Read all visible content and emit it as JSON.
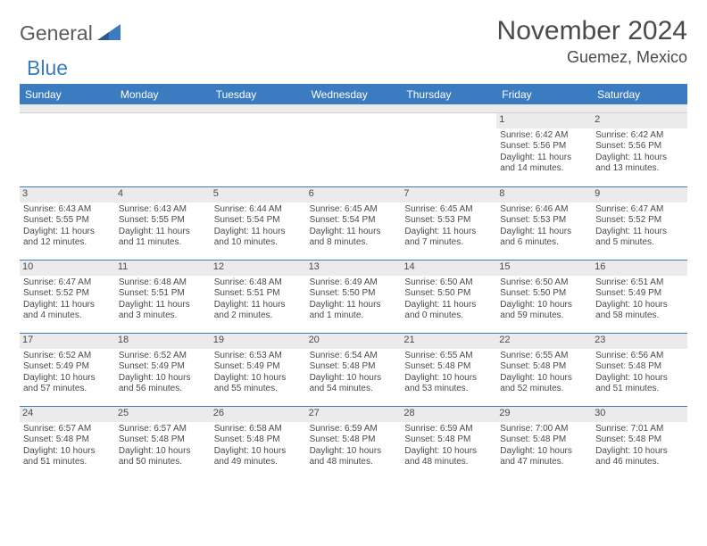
{
  "logo": {
    "part1": "General",
    "part2": "Blue"
  },
  "title": "November 2024",
  "location": "Guemez, Mexico",
  "colors": {
    "accent": "#3b7bbf",
    "header_bg": "#3b7bbf",
    "daynum_bg": "#ebebeb",
    "text": "#4a4a4a",
    "logo_gray": "#5a5a5a"
  },
  "weekdays": [
    "Sunday",
    "Monday",
    "Tuesday",
    "Wednesday",
    "Thursday",
    "Friday",
    "Saturday"
  ],
  "weeks": [
    [
      {
        "empty": true
      },
      {
        "empty": true
      },
      {
        "empty": true
      },
      {
        "empty": true
      },
      {
        "empty": true
      },
      {
        "day": "1",
        "sunrise": "Sunrise: 6:42 AM",
        "sunset": "Sunset: 5:56 PM",
        "daylight1": "Daylight: 11 hours",
        "daylight2": "and 14 minutes."
      },
      {
        "day": "2",
        "sunrise": "Sunrise: 6:42 AM",
        "sunset": "Sunset: 5:56 PM",
        "daylight1": "Daylight: 11 hours",
        "daylight2": "and 13 minutes."
      }
    ],
    [
      {
        "day": "3",
        "sunrise": "Sunrise: 6:43 AM",
        "sunset": "Sunset: 5:55 PM",
        "daylight1": "Daylight: 11 hours",
        "daylight2": "and 12 minutes."
      },
      {
        "day": "4",
        "sunrise": "Sunrise: 6:43 AM",
        "sunset": "Sunset: 5:55 PM",
        "daylight1": "Daylight: 11 hours",
        "daylight2": "and 11 minutes."
      },
      {
        "day": "5",
        "sunrise": "Sunrise: 6:44 AM",
        "sunset": "Sunset: 5:54 PM",
        "daylight1": "Daylight: 11 hours",
        "daylight2": "and 10 minutes."
      },
      {
        "day": "6",
        "sunrise": "Sunrise: 6:45 AM",
        "sunset": "Sunset: 5:54 PM",
        "daylight1": "Daylight: 11 hours",
        "daylight2": "and 8 minutes."
      },
      {
        "day": "7",
        "sunrise": "Sunrise: 6:45 AM",
        "sunset": "Sunset: 5:53 PM",
        "daylight1": "Daylight: 11 hours",
        "daylight2": "and 7 minutes."
      },
      {
        "day": "8",
        "sunrise": "Sunrise: 6:46 AM",
        "sunset": "Sunset: 5:53 PM",
        "daylight1": "Daylight: 11 hours",
        "daylight2": "and 6 minutes."
      },
      {
        "day": "9",
        "sunrise": "Sunrise: 6:47 AM",
        "sunset": "Sunset: 5:52 PM",
        "daylight1": "Daylight: 11 hours",
        "daylight2": "and 5 minutes."
      }
    ],
    [
      {
        "day": "10",
        "sunrise": "Sunrise: 6:47 AM",
        "sunset": "Sunset: 5:52 PM",
        "daylight1": "Daylight: 11 hours",
        "daylight2": "and 4 minutes."
      },
      {
        "day": "11",
        "sunrise": "Sunrise: 6:48 AM",
        "sunset": "Sunset: 5:51 PM",
        "daylight1": "Daylight: 11 hours",
        "daylight2": "and 3 minutes."
      },
      {
        "day": "12",
        "sunrise": "Sunrise: 6:48 AM",
        "sunset": "Sunset: 5:51 PM",
        "daylight1": "Daylight: 11 hours",
        "daylight2": "and 2 minutes."
      },
      {
        "day": "13",
        "sunrise": "Sunrise: 6:49 AM",
        "sunset": "Sunset: 5:50 PM",
        "daylight1": "Daylight: 11 hours",
        "daylight2": "and 1 minute."
      },
      {
        "day": "14",
        "sunrise": "Sunrise: 6:50 AM",
        "sunset": "Sunset: 5:50 PM",
        "daylight1": "Daylight: 11 hours",
        "daylight2": "and 0 minutes."
      },
      {
        "day": "15",
        "sunrise": "Sunrise: 6:50 AM",
        "sunset": "Sunset: 5:50 PM",
        "daylight1": "Daylight: 10 hours",
        "daylight2": "and 59 minutes."
      },
      {
        "day": "16",
        "sunrise": "Sunrise: 6:51 AM",
        "sunset": "Sunset: 5:49 PM",
        "daylight1": "Daylight: 10 hours",
        "daylight2": "and 58 minutes."
      }
    ],
    [
      {
        "day": "17",
        "sunrise": "Sunrise: 6:52 AM",
        "sunset": "Sunset: 5:49 PM",
        "daylight1": "Daylight: 10 hours",
        "daylight2": "and 57 minutes."
      },
      {
        "day": "18",
        "sunrise": "Sunrise: 6:52 AM",
        "sunset": "Sunset: 5:49 PM",
        "daylight1": "Daylight: 10 hours",
        "daylight2": "and 56 minutes."
      },
      {
        "day": "19",
        "sunrise": "Sunrise: 6:53 AM",
        "sunset": "Sunset: 5:49 PM",
        "daylight1": "Daylight: 10 hours",
        "daylight2": "and 55 minutes."
      },
      {
        "day": "20",
        "sunrise": "Sunrise: 6:54 AM",
        "sunset": "Sunset: 5:48 PM",
        "daylight1": "Daylight: 10 hours",
        "daylight2": "and 54 minutes."
      },
      {
        "day": "21",
        "sunrise": "Sunrise: 6:55 AM",
        "sunset": "Sunset: 5:48 PM",
        "daylight1": "Daylight: 10 hours",
        "daylight2": "and 53 minutes."
      },
      {
        "day": "22",
        "sunrise": "Sunrise: 6:55 AM",
        "sunset": "Sunset: 5:48 PM",
        "daylight1": "Daylight: 10 hours",
        "daylight2": "and 52 minutes."
      },
      {
        "day": "23",
        "sunrise": "Sunrise: 6:56 AM",
        "sunset": "Sunset: 5:48 PM",
        "daylight1": "Daylight: 10 hours",
        "daylight2": "and 51 minutes."
      }
    ],
    [
      {
        "day": "24",
        "sunrise": "Sunrise: 6:57 AM",
        "sunset": "Sunset: 5:48 PM",
        "daylight1": "Daylight: 10 hours",
        "daylight2": "and 51 minutes."
      },
      {
        "day": "25",
        "sunrise": "Sunrise: 6:57 AM",
        "sunset": "Sunset: 5:48 PM",
        "daylight1": "Daylight: 10 hours",
        "daylight2": "and 50 minutes."
      },
      {
        "day": "26",
        "sunrise": "Sunrise: 6:58 AM",
        "sunset": "Sunset: 5:48 PM",
        "daylight1": "Daylight: 10 hours",
        "daylight2": "and 49 minutes."
      },
      {
        "day": "27",
        "sunrise": "Sunrise: 6:59 AM",
        "sunset": "Sunset: 5:48 PM",
        "daylight1": "Daylight: 10 hours",
        "daylight2": "and 48 minutes."
      },
      {
        "day": "28",
        "sunrise": "Sunrise: 6:59 AM",
        "sunset": "Sunset: 5:48 PM",
        "daylight1": "Daylight: 10 hours",
        "daylight2": "and 48 minutes."
      },
      {
        "day": "29",
        "sunrise": "Sunrise: 7:00 AM",
        "sunset": "Sunset: 5:48 PM",
        "daylight1": "Daylight: 10 hours",
        "daylight2": "and 47 minutes."
      },
      {
        "day": "30",
        "sunrise": "Sunrise: 7:01 AM",
        "sunset": "Sunset: 5:48 PM",
        "daylight1": "Daylight: 10 hours",
        "daylight2": "and 46 minutes."
      }
    ]
  ]
}
